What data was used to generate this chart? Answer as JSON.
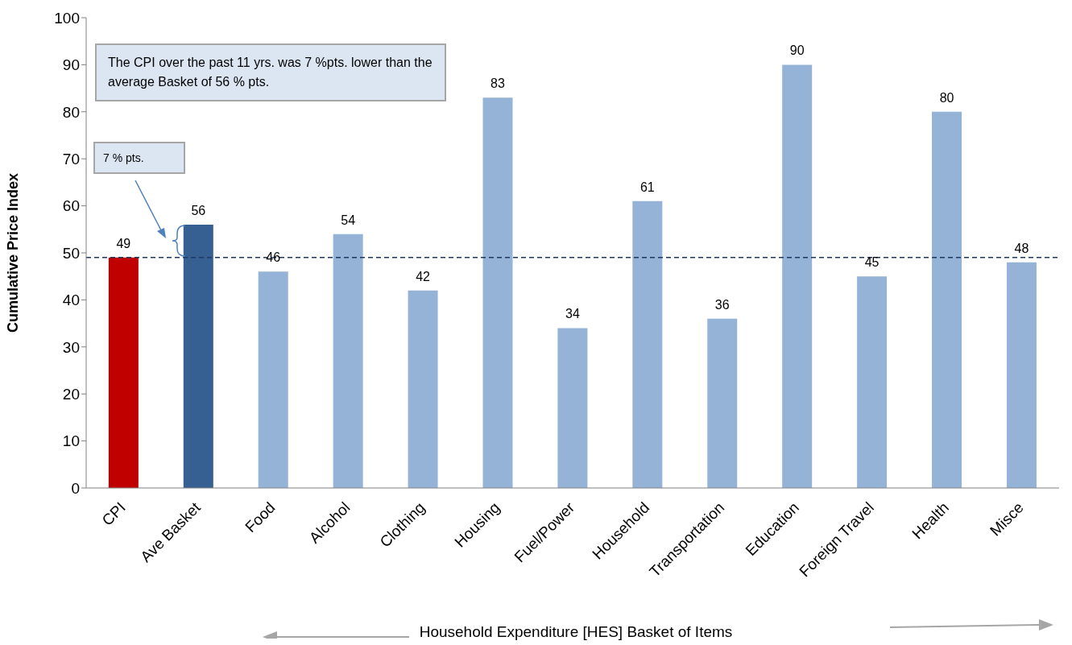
{
  "chart_data": {
    "type": "bar",
    "categories": [
      "CPI",
      "Ave Basket",
      "Food",
      "Alcohol",
      "Clothing",
      "Housing",
      "Fuel/Power",
      "Household",
      "Transportation",
      "Education",
      "Foreign Travel",
      "Health",
      "Misce"
    ],
    "values": [
      49,
      56,
      46,
      54,
      42,
      83,
      34,
      61,
      36,
      90,
      45,
      80,
      48
    ],
    "colors": [
      "#c00000",
      "#376092",
      "#95b3d7",
      "#95b3d7",
      "#95b3d7",
      "#95b3d7",
      "#95b3d7",
      "#95b3d7",
      "#95b3d7",
      "#95b3d7",
      "#95b3d7",
      "#95b3d7",
      "#95b3d7"
    ],
    "ylabel": "Cumulative Price Index",
    "xlabel": "Household Expenditure [HES] Basket of Items",
    "ylim": [
      0,
      100
    ],
    "yticks": [
      0,
      10,
      20,
      30,
      40,
      50,
      60,
      70,
      80,
      90,
      100
    ],
    "grid": false,
    "data_labels": true,
    "ref_lines": [
      {
        "axis": "y",
        "value": 49,
        "color": "#1f3864",
        "line_style": "dashed"
      }
    ],
    "annotations": [
      "The CPI over the past 11 yrs. was 7 %pts. lower than the average Basket of 56 % pts.",
      "7 % pts."
    ]
  }
}
